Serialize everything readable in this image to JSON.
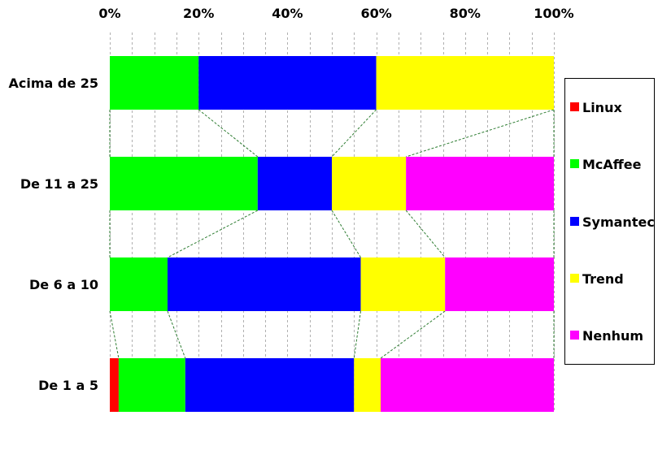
{
  "chart_data": {
    "type": "bar",
    "orientation": "horizontal",
    "stacked": "percent",
    "categories": [
      "Acima de 25",
      "De 11 a 25",
      "De 6 a 10",
      "De 1 a 5"
    ],
    "x_ticks": [
      "0%",
      "20%",
      "40%",
      "60%",
      "80%",
      "100%"
    ],
    "xlim": [
      0,
      100
    ],
    "grid": "vertical dashed",
    "legend_position": "right",
    "series": [
      {
        "name": "Linux",
        "color": "#ff0000",
        "values": [
          0,
          0,
          0,
          2
        ]
      },
      {
        "name": "McAffee",
        "color": "#00ff00",
        "values": [
          20,
          33.3,
          13,
          15
        ]
      },
      {
        "name": "Symantec",
        "color": "#0000ff",
        "values": [
          40,
          16.7,
          43.5,
          38
        ]
      },
      {
        "name": "Trend",
        "color": "#ffff00",
        "values": [
          40,
          16.7,
          19,
          6
        ]
      },
      {
        "name": "Nenhum",
        "color": "#ff00ff",
        "values": [
          0,
          33.3,
          24.5,
          39
        ]
      }
    ],
    "series_lines": "dashed connectors between segment boundaries of adjacent bars"
  }
}
